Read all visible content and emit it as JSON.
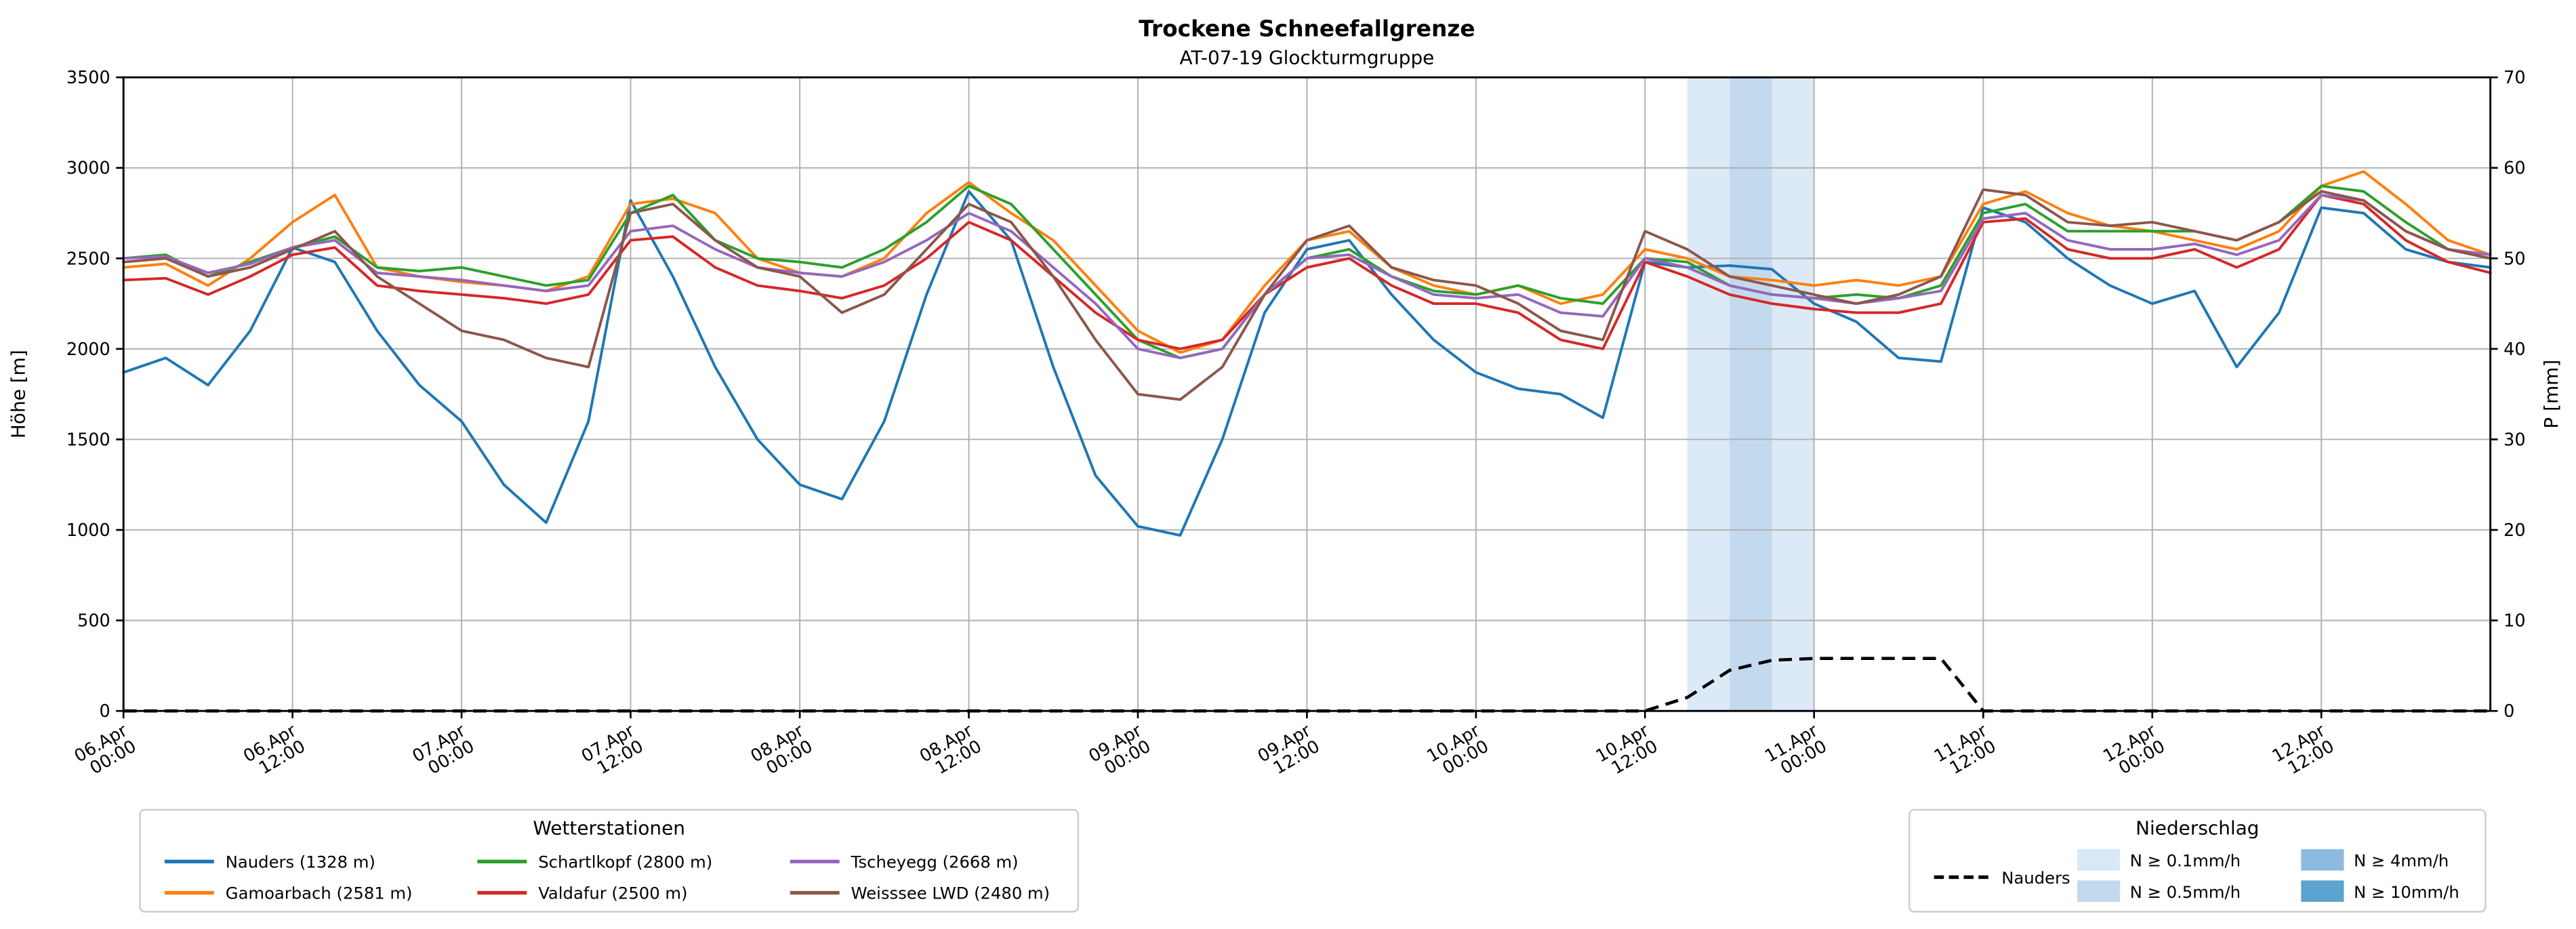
{
  "chart_data": {
    "type": "line",
    "title": "Trockene Schneefallgrenze",
    "subtitle": "AT-07-19 Glockturmgruppe",
    "ylabel_left": "Höhe [m]",
    "ylabel_right": "P [mm]",
    "ylim_left": [
      0,
      3500
    ],
    "ylim_right": [
      0,
      70
    ],
    "x_range": [
      0,
      168
    ],
    "grid": true,
    "x_ticks": [
      {
        "hour": 0,
        "date": "06.Apr",
        "time": "00:00"
      },
      {
        "hour": 12,
        "date": "06.Apr",
        "time": "12:00"
      },
      {
        "hour": 24,
        "date": "07.Apr",
        "time": "00:00"
      },
      {
        "hour": 36,
        "date": "07.Apr",
        "time": "12:00"
      },
      {
        "hour": 48,
        "date": "08.Apr",
        "time": "00:00"
      },
      {
        "hour": 60,
        "date": "08.Apr",
        "time": "12:00"
      },
      {
        "hour": 72,
        "date": "09.Apr",
        "time": "00:00"
      },
      {
        "hour": 84,
        "date": "09.Apr",
        "time": "12:00"
      },
      {
        "hour": 96,
        "date": "10.Apr",
        "time": "00:00"
      },
      {
        "hour": 108,
        "date": "10.Apr",
        "time": "12:00"
      },
      {
        "hour": 120,
        "date": "11.Apr",
        "time": "00:00"
      },
      {
        "hour": 132,
        "date": "11.Apr",
        "time": "12:00"
      },
      {
        "hour": 144,
        "date": "12.Apr",
        "time": "00:00"
      },
      {
        "hour": 156,
        "date": "12.Apr",
        "time": "12:00"
      }
    ],
    "y_ticks_left": [
      0,
      500,
      1000,
      1500,
      2000,
      2500,
      3000,
      3500
    ],
    "y_ticks_right": [
      0,
      10,
      20,
      30,
      40,
      50,
      60,
      70
    ],
    "hours": [
      0,
      3,
      6,
      9,
      12,
      15,
      18,
      21,
      24,
      27,
      30,
      33,
      36,
      39,
      42,
      45,
      48,
      51,
      54,
      57,
      60,
      63,
      66,
      69,
      72,
      75,
      78,
      81,
      84,
      87,
      90,
      93,
      96,
      99,
      102,
      105,
      108,
      111,
      114,
      117,
      120,
      123,
      126,
      129,
      132,
      135,
      138,
      141,
      144,
      147,
      150,
      153,
      156,
      159,
      162,
      165,
      168
    ],
    "series": [
      {
        "id": "nauders",
        "name": "Nauders (1328 m)",
        "color": "#1f77b4",
        "values": [
          1870,
          1950,
          1800,
          2100,
          2560,
          2480,
          2100,
          1800,
          1600,
          1250,
          1040,
          1600,
          2820,
          2400,
          1900,
          1500,
          1250,
          1170,
          1600,
          2300,
          2870,
          2600,
          1900,
          1300,
          1020,
          970,
          1500,
          2200,
          2550,
          2600,
          2300,
          2050,
          1870,
          1780,
          1750,
          1620,
          2480,
          2450,
          2460,
          2440,
          2250,
          2150,
          1950,
          1930,
          2780,
          2700,
          2500,
          2350,
          2250,
          2320,
          1900,
          2200,
          2780,
          2750,
          2550,
          2480,
          2450
        ]
      },
      {
        "id": "gamoarbach",
        "name": "Gamoarbach (2581 m)",
        "color": "#ff7f0e",
        "values": [
          2450,
          2470,
          2350,
          2500,
          2700,
          2850,
          2450,
          2400,
          2370,
          2350,
          2320,
          2400,
          2800,
          2830,
          2750,
          2500,
          2420,
          2400,
          2500,
          2750,
          2920,
          2750,
          2600,
          2350,
          2100,
          1980,
          2050,
          2350,
          2600,
          2650,
          2450,
          2350,
          2300,
          2350,
          2250,
          2300,
          2550,
          2500,
          2400,
          2380,
          2350,
          2380,
          2350,
          2400,
          2800,
          2870,
          2750,
          2680,
          2650,
          2600,
          2550,
          2650,
          2900,
          2980,
          2800,
          2600,
          2520
        ]
      },
      {
        "id": "schartlkopf",
        "name": "Schartlkopf (2800 m)",
        "color": "#2ca02c",
        "values": [
          2500,
          2520,
          2400,
          2480,
          2560,
          2620,
          2450,
          2430,
          2450,
          2400,
          2350,
          2380,
          2750,
          2850,
          2600,
          2500,
          2480,
          2450,
          2550,
          2700,
          2900,
          2800,
          2550,
          2300,
          2050,
          1950,
          2000,
          2300,
          2500,
          2550,
          2400,
          2320,
          2300,
          2350,
          2280,
          2250,
          2500,
          2480,
          2350,
          2300,
          2280,
          2300,
          2280,
          2350,
          2750,
          2800,
          2650,
          2650,
          2650,
          2650,
          2600,
          2700,
          2900,
          2870,
          2700,
          2550,
          2500
        ]
      },
      {
        "id": "valdafur",
        "name": "Valdafur (2500 m)",
        "color": "#d62728",
        "values": [
          2380,
          2390,
          2300,
          2400,
          2520,
          2560,
          2350,
          2320,
          2300,
          2280,
          2250,
          2300,
          2600,
          2620,
          2450,
          2350,
          2320,
          2280,
          2350,
          2500,
          2700,
          2600,
          2400,
          2200,
          2050,
          2000,
          2050,
          2300,
          2450,
          2500,
          2350,
          2250,
          2250,
          2200,
          2050,
          2000,
          2480,
          2400,
          2300,
          2250,
          2220,
          2200,
          2200,
          2250,
          2700,
          2720,
          2550,
          2500,
          2500,
          2550,
          2450,
          2550,
          2850,
          2800,
          2600,
          2480,
          2420
        ]
      },
      {
        "id": "tscheyegg",
        "name": "Tscheyegg (2668 m)",
        "color": "#9467bd",
        "values": [
          2500,
          2510,
          2420,
          2470,
          2560,
          2600,
          2420,
          2400,
          2380,
          2350,
          2320,
          2350,
          2650,
          2680,
          2550,
          2450,
          2420,
          2400,
          2480,
          2600,
          2750,
          2650,
          2450,
          2250,
          2000,
          1950,
          2000,
          2300,
          2500,
          2520,
          2400,
          2300,
          2280,
          2300,
          2200,
          2180,
          2500,
          2450,
          2350,
          2300,
          2280,
          2250,
          2280,
          2320,
          2720,
          2750,
          2600,
          2550,
          2550,
          2580,
          2520,
          2600,
          2850,
          2820,
          2650,
          2550,
          2520
        ]
      },
      {
        "id": "weisssee-lwd",
        "name": "Weisssee LWD (2480 m)",
        "color": "#8c564b",
        "values": [
          2480,
          2500,
          2400,
          2450,
          2550,
          2650,
          2400,
          2250,
          2100,
          2050,
          1950,
          1900,
          2750,
          2800,
          2600,
          2450,
          2400,
          2200,
          2300,
          2550,
          2800,
          2700,
          2400,
          2050,
          1750,
          1720,
          1900,
          2300,
          2600,
          2680,
          2450,
          2380,
          2350,
          2250,
          2100,
          2050,
          2650,
          2550,
          2400,
          2350,
          2300,
          2250,
          2300,
          2400,
          2880,
          2850,
          2700,
          2680,
          2700,
          2650,
          2600,
          2700,
          2870,
          2820,
          2650,
          2550,
          2500
        ]
      }
    ],
    "precip": {
      "name": "Nauders",
      "axis": "right",
      "style": "dashed",
      "color": "#000000",
      "values": [
        0,
        0,
        0,
        0,
        0,
        0,
        0,
        0,
        0,
        0,
        0,
        0,
        0,
        0,
        0,
        0,
        0,
        0,
        0,
        0,
        0,
        0,
        0,
        0,
        0,
        0,
        0,
        0,
        0,
        0,
        0,
        0,
        0,
        0,
        0,
        0,
        0,
        1.5,
        4.5,
        5.6,
        5.8,
        5.8,
        5.8,
        5.8,
        0,
        0,
        0,
        0,
        0,
        0,
        0,
        0,
        0,
        0,
        0,
        0,
        0
      ]
    },
    "precip_bands": [
      {
        "label": "N ≥ 0.1mm/h",
        "from_hour": 111,
        "to_hour": 120,
        "color": "#dce9f6"
      },
      {
        "label": "N ≥ 0.5mm/h",
        "from_hour": 114,
        "to_hour": 117,
        "color": "#c3d9ee"
      }
    ]
  },
  "legend": {
    "stations_title": "Wetterstationen",
    "precip_title": "Niederschlag",
    "precip_line_label": "Nauders",
    "precip_levels": [
      {
        "label": "N ≥ 0.1mm/h",
        "color": "#d9e8f5"
      },
      {
        "label": "N ≥ 0.5mm/h",
        "color": "#c0d9ee"
      },
      {
        "label": "N ≥ 4mm/h",
        "color": "#8bbbde"
      },
      {
        "label": "N ≥ 10mm/h",
        "color": "#5ba3d0"
      }
    ]
  }
}
